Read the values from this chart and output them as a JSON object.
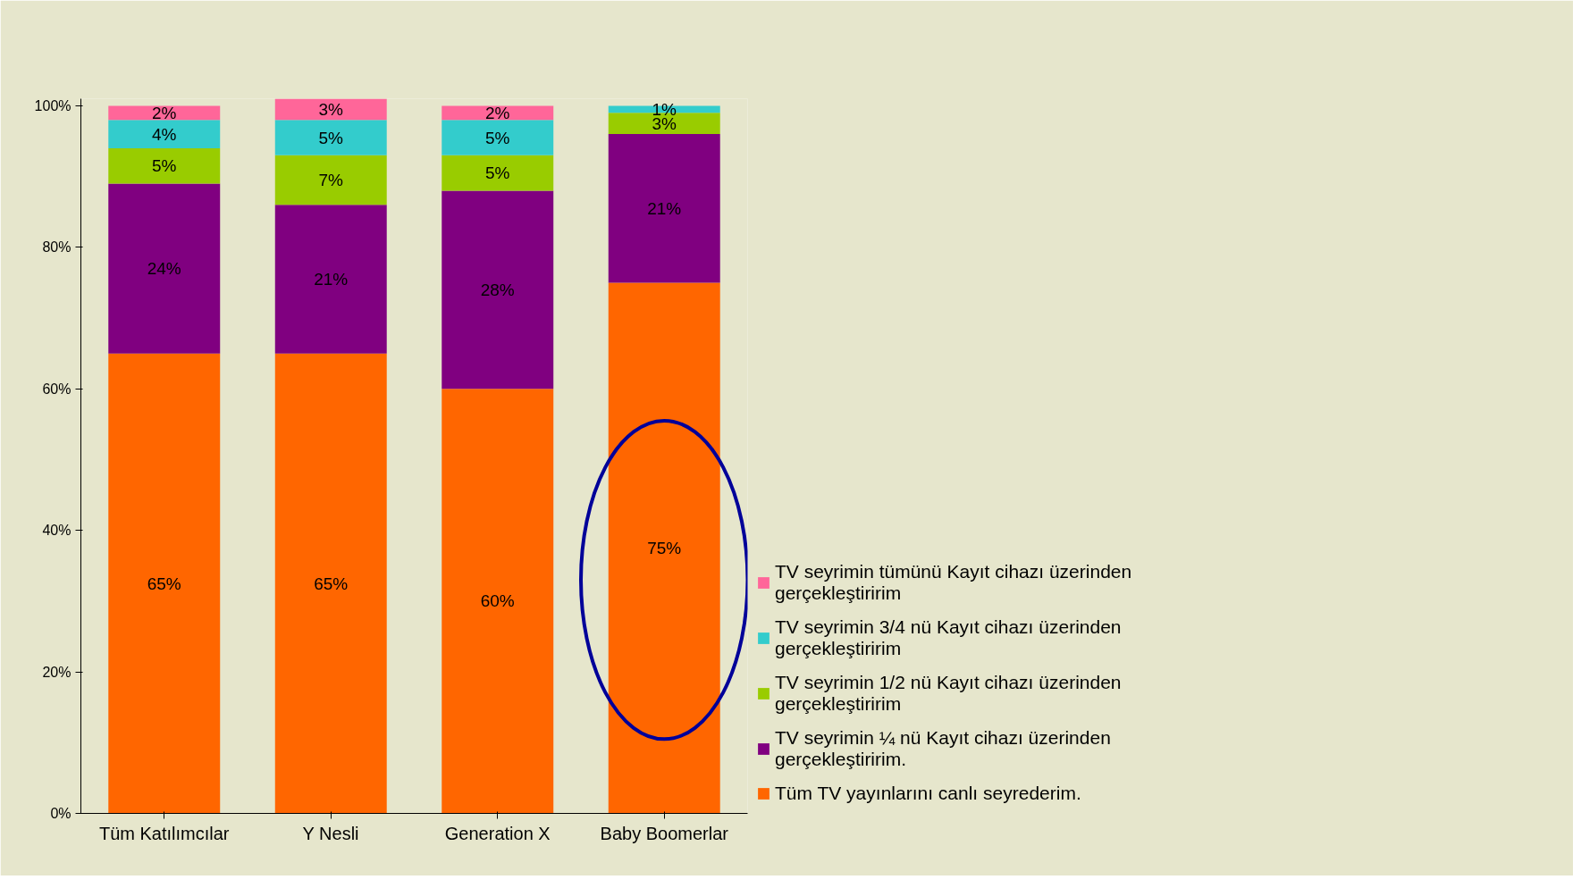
{
  "chart_data": {
    "type": "bar",
    "stacked": true,
    "categories": [
      "Tüm Katılımcılar",
      "Y Nesli",
      "Generation X",
      "Baby Boomerlar"
    ],
    "series": [
      {
        "name": "Tüm TV yayınlarını canlı seyrederim.",
        "color": "#ff6600",
        "values": [
          65,
          65,
          60,
          75
        ],
        "value_labels": [
          "65%",
          "65%",
          "60%",
          "75%"
        ]
      },
      {
        "name": "TV seyrimin ¼ nü Kayıt cihazı üzerinden gerçekleştiririm.",
        "color": "#800080",
        "values": [
          24,
          21,
          28,
          21
        ],
        "value_labels": [
          "24%",
          "21%",
          "28%",
          "21%"
        ]
      },
      {
        "name": "TV seyrimin 1/2 nü Kayıt cihazı üzerinden gerçekleştiririm",
        "color": "#99cc00",
        "values": [
          5,
          7,
          5,
          3
        ],
        "value_labels": [
          "5%",
          "7%",
          "5%",
          "3%"
        ]
      },
      {
        "name": "TV seyrimin 3/4 nü Kayıt cihazı üzerinden gerçekleştiririm",
        "color": "#33cccc",
        "values": [
          4,
          5,
          5,
          1
        ],
        "value_labels": [
          "4%",
          "5%",
          "5%",
          "1%"
        ]
      },
      {
        "name": "TV seyrimin tümünü Kayıt cihazı üzerinden gerçekleştiririm",
        "color": "#ff6699",
        "values": [
          2,
          3,
          2,
          null
        ],
        "value_labels": [
          "2%",
          "3%",
          "2%",
          null
        ]
      }
    ],
    "ylim": [
      0,
      101
    ],
    "yticks": [
      {
        "value": 0,
        "label": "0%"
      },
      {
        "value": 20,
        "label": "20%"
      },
      {
        "value": 40,
        "label": "40%"
      },
      {
        "value": 60,
        "label": "60%"
      },
      {
        "value": 80,
        "label": "80%"
      },
      {
        "value": 100,
        "label": "100%"
      }
    ],
    "legend": "right",
    "grid": false
  }
}
